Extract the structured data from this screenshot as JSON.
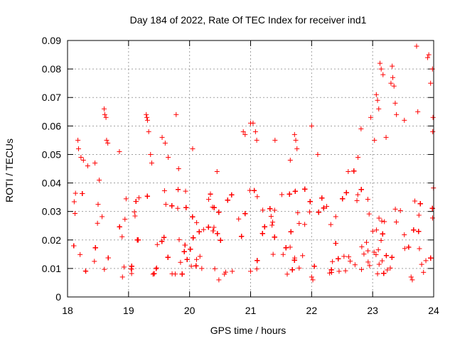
{
  "chart_data": {
    "type": "scatter",
    "title": "Day 184 of 2022, Rate Of TEC Index for receiver ind1",
    "xlabel": "GPS time / hours",
    "ylabel": "ROTI / TECUs",
    "xlim": [
      18,
      24
    ],
    "ylim": [
      0,
      0.09
    ],
    "x_ticks": [
      "18",
      "19",
      "20",
      "21",
      "22",
      "23",
      "24"
    ],
    "y_ticks": [
      "0",
      "0.01",
      "0.02",
      "0.03",
      "0.04",
      "0.05",
      "0.06",
      "0.07",
      "0.08",
      "0.09"
    ],
    "grid": true,
    "marker": "+",
    "series": [
      {
        "color": "#ff0000",
        "points": [
          [
            18.17,
            0.055
          ],
          [
            18.18,
            0.052
          ],
          [
            18.22,
            0.049
          ],
          [
            18.26,
            0.048
          ],
          [
            18.33,
            0.046
          ],
          [
            18.45,
            0.047
          ],
          [
            18.52,
            0.041
          ],
          [
            18.6,
            0.066
          ],
          [
            18.61,
            0.064
          ],
          [
            18.63,
            0.063
          ],
          [
            18.64,
            0.055
          ],
          [
            18.66,
            0.054
          ],
          [
            18.85,
            0.051
          ],
          [
            19.29,
            0.064
          ],
          [
            19.3,
            0.063
          ],
          [
            19.31,
            0.062
          ],
          [
            19.33,
            0.058
          ],
          [
            19.36,
            0.05
          ],
          [
            19.38,
            0.047
          ],
          [
            19.55,
            0.056
          ],
          [
            19.6,
            0.054
          ],
          [
            19.65,
            0.049
          ],
          [
            19.78,
            0.064
          ],
          [
            19.82,
            0.045
          ],
          [
            20.05,
            0.052
          ],
          [
            20.45,
            0.044
          ],
          [
            20.88,
            0.058
          ],
          [
            20.91,
            0.057
          ],
          [
            21.0,
            0.061
          ],
          [
            21.04,
            0.061
          ],
          [
            21.08,
            0.058
          ],
          [
            21.1,
            0.055
          ],
          [
            21.4,
            0.055
          ],
          [
            21.65,
            0.048
          ],
          [
            21.72,
            0.057
          ],
          [
            21.74,
            0.055
          ],
          [
            21.76,
            0.052
          ],
          [
            22.0,
            0.06
          ],
          [
            22.1,
            0.05
          ],
          [
            22.6,
            0.044
          ],
          [
            22.76,
            0.049
          ],
          [
            22.81,
            0.059
          ],
          [
            22.97,
            0.063
          ],
          [
            23.03,
            0.055
          ],
          [
            23.06,
            0.071
          ],
          [
            23.08,
            0.069
          ],
          [
            23.1,
            0.066
          ],
          [
            23.12,
            0.082
          ],
          [
            23.14,
            0.08
          ],
          [
            23.17,
            0.078
          ],
          [
            23.22,
            0.056
          ],
          [
            23.3,
            0.075
          ],
          [
            23.32,
            0.081
          ],
          [
            23.33,
            0.077
          ],
          [
            23.35,
            0.074
          ],
          [
            23.37,
            0.068
          ],
          [
            23.39,
            0.064
          ],
          [
            23.52,
            0.062
          ],
          [
            23.72,
            0.088
          ],
          [
            23.74,
            0.065
          ],
          [
            23.9,
            0.084
          ],
          [
            23.92,
            0.085
          ],
          [
            23.95,
            0.075
          ],
          [
            23.98,
            0.08
          ],
          [
            23.99,
            0.063
          ],
          [
            23.985,
            0.058
          ],
          [
            20.48,
            0.006
          ],
          [
            21.0,
            0.009
          ],
          [
            21.6,
            0.008
          ],
          [
            22.0,
            0.007
          ],
          [
            22.02,
            0.006
          ],
          [
            23.63,
            0.007
          ],
          [
            23.65,
            0.006
          ],
          [
            18.3,
            0.009
          ],
          [
            18.9,
            0.007
          ],
          [
            19.4,
            0.008
          ],
          [
            20.2,
            0.01
          ],
          [
            20.7,
            0.009
          ],
          [
            22.45,
            0.009
          ],
          [
            22.95,
            0.011
          ]
        ]
      }
    ]
  }
}
